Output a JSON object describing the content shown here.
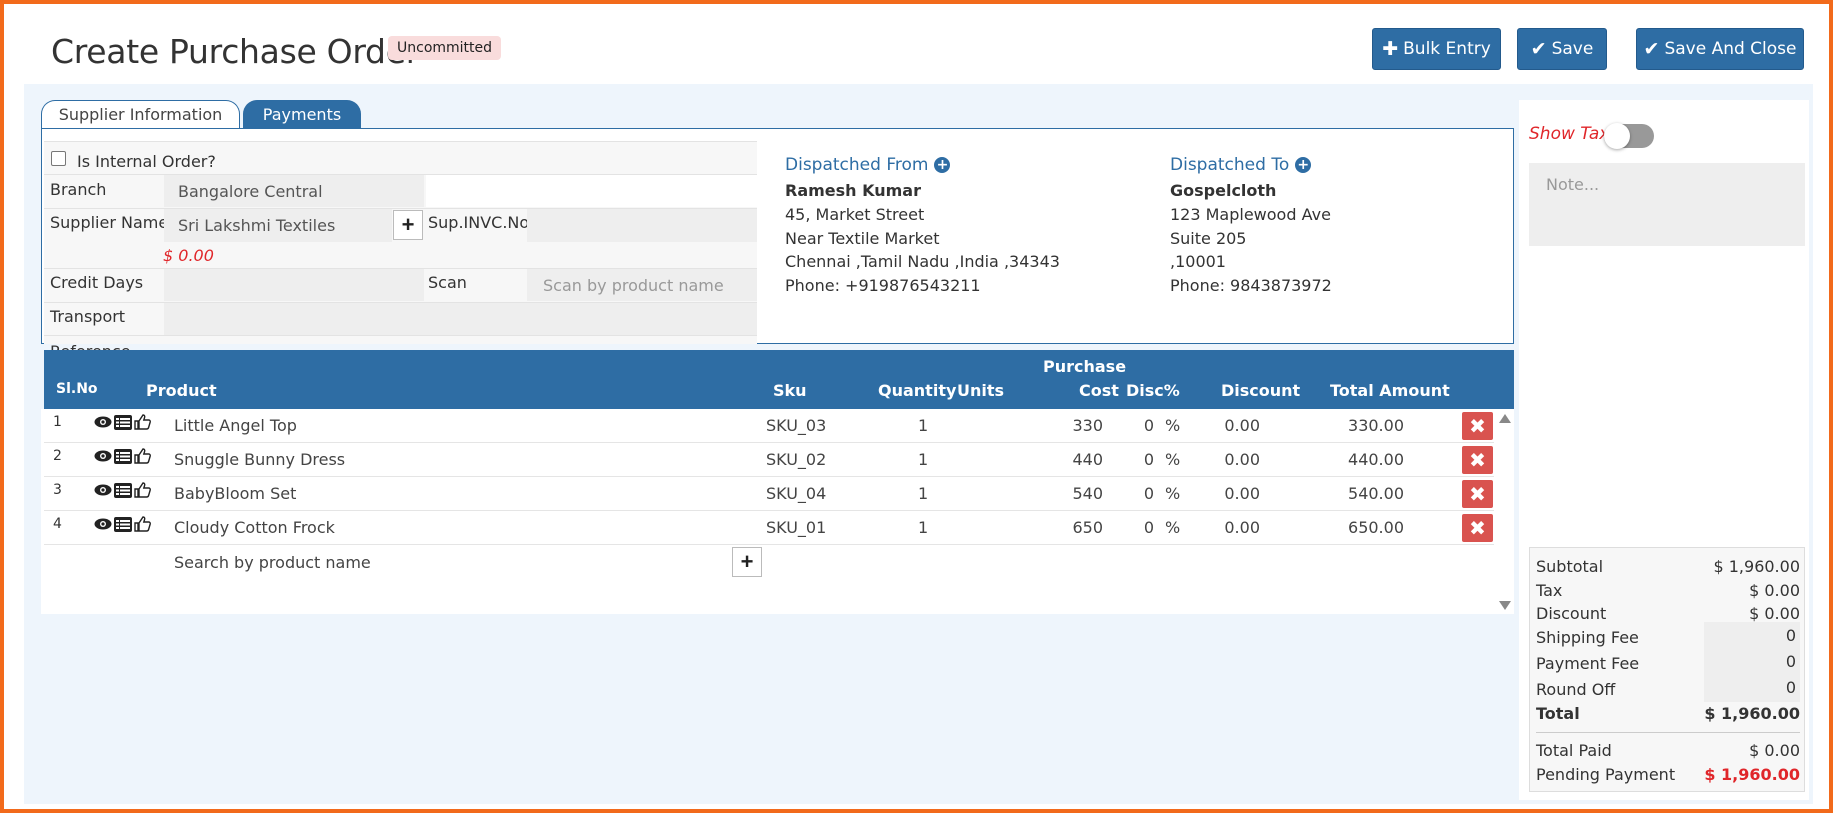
{
  "header": {
    "title": "Create Purchase Order",
    "status_badge": "Uncommitted",
    "buttons": {
      "bulk_entry": "Bulk Entry",
      "save": "Save",
      "save_and_close": "Save And Close"
    }
  },
  "tabs": [
    {
      "label": "Supplier Information",
      "active": false
    },
    {
      "label": "Payments",
      "active": true
    }
  ],
  "form": {
    "internal_order_label": "Is Internal Order?",
    "internal_order_checked": false,
    "branch_label": "Branch",
    "branch_value": "Bangalore Central",
    "supplier_name_label": "Supplier Name",
    "supplier_name_value": "Sri Lakshmi Textiles",
    "supplier_balance": "$ 0.00",
    "sup_invc_label": "Sup.INVC.No",
    "sup_invc_value": "",
    "credit_days_label": "Credit Days",
    "credit_days_value": "",
    "scan_label": "Scan",
    "scan_placeholder": "Scan by product name",
    "transport_label": "Transport",
    "transport_value": "",
    "reference_label": "Reference"
  },
  "dispatched_from": {
    "heading": "Dispatched From",
    "name": "Ramesh Kumar",
    "line1": "45, Market Street",
    "line2": "Near Textile Market",
    "line3": "Chennai ,Tamil Nadu ,India ,34343",
    "phone": "Phone: +919876543211"
  },
  "dispatched_to": {
    "heading": "Dispatched To",
    "name": "Gospelcloth",
    "line1": "123 Maplewood Ave",
    "line2": "Suite 205",
    "line3": ",10001",
    "phone": "Phone: 9843873972"
  },
  "table": {
    "columns": {
      "sl_no": "Sl.No",
      "product": "Product",
      "sku": "Sku",
      "quantity": "Quantity",
      "units": "Units",
      "purchase_cost_top": "Purchase",
      "purchase_cost_bottom": "Cost",
      "disc_pct": "Disc%",
      "discount": "Discount",
      "total_amount": "Total Amount"
    },
    "rows": [
      {
        "sl": "1",
        "product": "Little Angel Top",
        "sku": "SKU_03",
        "qty": "1",
        "units": "",
        "cost": "330",
        "disc_pct": "0",
        "pct_sign": "%",
        "discount": "0.00",
        "total": "330.00"
      },
      {
        "sl": "2",
        "product": "Snuggle Bunny Dress",
        "sku": "SKU_02",
        "qty": "1",
        "units": "",
        "cost": "440",
        "disc_pct": "0",
        "pct_sign": "%",
        "discount": "0.00",
        "total": "440.00"
      },
      {
        "sl": "3",
        "product": "BabyBloom Set",
        "sku": "SKU_04",
        "qty": "1",
        "units": "",
        "cost": "540",
        "disc_pct": "0",
        "pct_sign": "%",
        "discount": "0.00",
        "total": "540.00"
      },
      {
        "sl": "4",
        "product": "Cloudy Cotton Frock",
        "sku": "SKU_01",
        "qty": "1",
        "units": "",
        "cost": "650",
        "disc_pct": "0",
        "pct_sign": "%",
        "discount": "0.00",
        "total": "650.00"
      }
    ],
    "search_placeholder": "Search by product name"
  },
  "sidebar": {
    "show_tax_label": "Show Tax",
    "show_tax_enabled": false,
    "note_placeholder": "Note...",
    "summary": {
      "subtotal_label": "Subtotal",
      "subtotal": "$ 1,960.00",
      "tax_label": "Tax",
      "tax": "$ 0.00",
      "discount_label": "Discount",
      "discount": "$ 0.00",
      "shipping_label": "Shipping Fee",
      "shipping": "0",
      "payment_fee_label": "Payment Fee",
      "payment_fee": "0",
      "round_off_label": "Round Off",
      "round_off": "0",
      "total_label": "Total",
      "total": "$ 1,960.00",
      "total_paid_label": "Total Paid",
      "total_paid": "$ 0.00",
      "pending_label": "Pending Payment",
      "pending": "$ 1,960.00"
    }
  },
  "colors": {
    "accent": "#2e6da4",
    "danger": "#d9534f",
    "frame_border": "#f26a1b",
    "badge_bg": "#f9dcdc",
    "red_text": "#e0262a"
  }
}
